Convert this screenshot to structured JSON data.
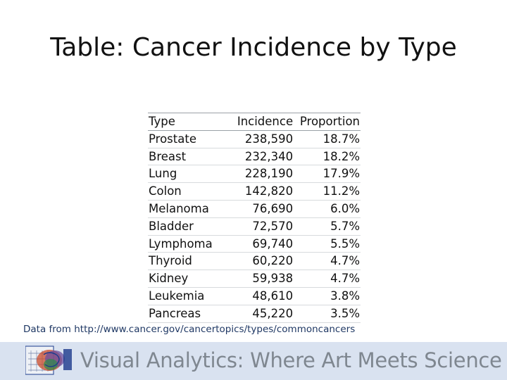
{
  "slide": {
    "title": "Table: Cancer Incidence by Type",
    "source": "Data from http://www.cancer.gov/cancertopics/types/commoncancers",
    "footer_text": "Visual Analytics: Where Art Meets Science"
  },
  "table": {
    "headers": [
      "Type",
      "Incidence",
      "Proportion"
    ],
    "rows": [
      [
        "Prostate",
        "238,590",
        "18.7%"
      ],
      [
        "Breast",
        "232,340",
        "18.2%"
      ],
      [
        "Lung",
        "228,190",
        "17.9%"
      ],
      [
        "Colon",
        "142,820",
        "11.2%"
      ],
      [
        "Melanoma",
        "76,690",
        "6.0%"
      ],
      [
        "Bladder",
        "72,570",
        "5.7%"
      ],
      [
        "Lymphoma",
        "69,740",
        "5.5%"
      ],
      [
        "Thyroid",
        "60,220",
        "4.7%"
      ],
      [
        "Kidney",
        "59,938",
        "4.7%"
      ],
      [
        "Leukemia",
        "48,610",
        "3.8%"
      ],
      [
        "Pancreas",
        "45,220",
        "3.5%"
      ]
    ]
  },
  "logo": {
    "icon": "brain-art-logo-icon",
    "text": "",
    "colors": [
      "#1b3a8c",
      "#c94a2a",
      "#6b4fa0",
      "#2a8c4a"
    ]
  }
}
